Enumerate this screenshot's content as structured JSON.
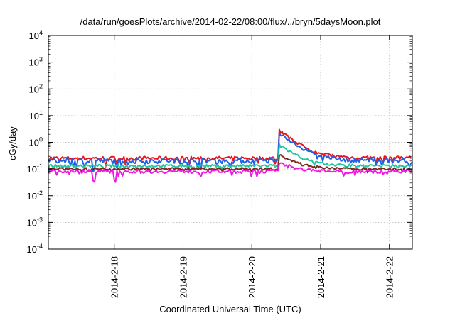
{
  "chart_data": {
    "type": "line",
    "title": "/data/run/goesPlots/archive/2014-02-22/08:00/flux/../bryn/5daysMoon.plot",
    "xlabel": "Coordinated Universal Time (UTC)",
    "ylabel": "cGy/day",
    "xlim": [
      "2014-02-17 01:00",
      "2014-02-22 08:00"
    ],
    "x_ticks": [
      "2014-2-18",
      "2014-2-19",
      "2014-2-20",
      "2014-2-21",
      "2014-2-22"
    ],
    "y_scale": "log",
    "ylim": [
      0.0001,
      10000
    ],
    "y_ticks": [
      {
        "base": "10",
        "exp": "-4"
      },
      {
        "base": "10",
        "exp": "-3"
      },
      {
        "base": "10",
        "exp": "-2"
      },
      {
        "base": "10",
        "exp": "-1"
      },
      {
        "base": "10",
        "exp": "0"
      },
      {
        "base": "10",
        "exp": "1"
      },
      {
        "base": "10",
        "exp": "2"
      },
      {
        "base": "10",
        "exp": "3"
      },
      {
        "base": "10",
        "exp": "4"
      }
    ],
    "grid": true,
    "legend": "none",
    "event": {
      "time": "2014-02-20 09:30",
      "peak_red": 2.8
    },
    "series": [
      {
        "color": "#e8161c",
        "baseline": 0.25,
        "peak": 2.8,
        "noise": 0.35,
        "dips": 0
      },
      {
        "color": "#2060e8",
        "baseline": 0.2,
        "peak": 2.2,
        "noise": 0.45,
        "dips": 1
      },
      {
        "color": "#20c8a0",
        "baseline": 0.13,
        "peak": 0.8,
        "noise": 0.25,
        "dips": 0
      },
      {
        "color": "#7a2a1c",
        "baseline": 0.1,
        "peak": 0.35,
        "noise": 0.2,
        "dips": 0
      },
      {
        "color": "#f018e0",
        "baseline": 0.08,
        "peak": 0.18,
        "noise": 0.3,
        "dips": 2
      }
    ]
  }
}
